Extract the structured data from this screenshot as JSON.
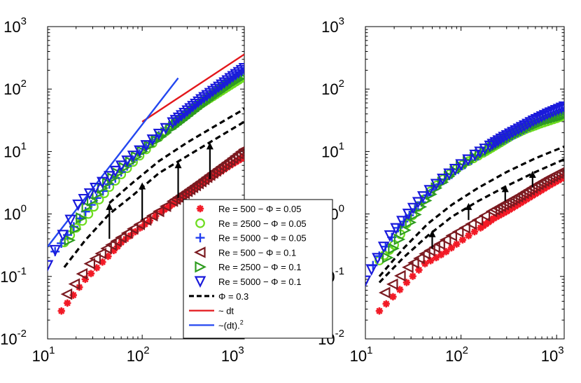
{
  "chart_data": [
    {
      "type": "scatter",
      "panel": "left",
      "x_scale": "log",
      "y_scale": "log",
      "xlim": [
        10,
        1200
      ],
      "ylim": [
        0.01,
        1000
      ],
      "x_ticks": [
        {
          "label": "10",
          "exp": "1"
        },
        {
          "label": "10",
          "exp": "2"
        },
        {
          "label": "10",
          "exp": "3"
        }
      ],
      "x_tick_values": [
        10,
        100,
        1000
      ],
      "y_ticks": [
        {
          "label": "10",
          "exp": "-2"
        },
        {
          "label": "10",
          "exp": "-1"
        },
        {
          "label": "10",
          "exp": "0"
        },
        {
          "label": "10",
          "exp": "1"
        },
        {
          "label": "10",
          "exp": "2"
        },
        {
          "label": "10",
          "exp": "3"
        }
      ],
      "y_tick_values": [
        0.01,
        0.1,
        1,
        10,
        100,
        1000
      ],
      "series": [
        {
          "name": "Re = 500 − Φ = 0.05",
          "marker": "asterisk",
          "color": "#f21a26",
          "x": [
            14,
            25,
            38,
            50,
            60,
            75,
            95,
            120,
            160,
            220,
            300,
            420,
            600,
            850,
            1200
          ],
          "y": [
            0.028,
            0.09,
            0.17,
            0.26,
            0.35,
            0.45,
            0.6,
            0.78,
            1.1,
            1.5,
            2.1,
            3.0,
            4.3,
            6.0,
            8.2
          ]
        },
        {
          "name": "Re = 2500 − Φ = 0.05",
          "marker": "circle",
          "color": "#6ddc1e",
          "x": [
            15,
            20,
            27,
            35,
            45,
            60,
            80,
            110,
            150,
            210,
            300,
            420,
            600,
            850,
            1200
          ],
          "y": [
            0.35,
            0.6,
            1.0,
            1.7,
            2.7,
            4.3,
            6.8,
            10.8,
            17,
            26,
            40,
            58,
            82,
            115,
            160
          ]
        },
        {
          "name": "Re = 5000 − Φ = 0.05",
          "marker": "plus",
          "color": "#1f3cf0",
          "x": [
            12,
            22,
            33,
            45,
            60,
            80,
            110,
            150,
            210,
            300,
            420,
            600,
            850,
            1200
          ],
          "y": [
            0.25,
            0.85,
            1.8,
            3.0,
            4.7,
            7.3,
            11.5,
            18,
            28,
            43,
            65,
            95,
            140,
            200
          ]
        },
        {
          "name": "Re = 500 − Φ = 0.1",
          "marker": "triangle-left",
          "color": "#7b1a20",
          "x": [
            16,
            28,
            42,
            60,
            80,
            110,
            150,
            210,
            300,
            420,
            600,
            850,
            1200
          ],
          "y": [
            0.052,
            0.16,
            0.28,
            0.42,
            0.58,
            0.8,
            1.1,
            1.6,
            2.3,
            3.3,
            4.9,
            7.2,
            10.8
          ]
        },
        {
          "name": "Re = 2500 − Φ = 0.1",
          "marker": "triangle-right",
          "color": "#2e9c1f",
          "x": [
            17,
            26,
            38,
            55,
            75,
            100,
            140,
            200,
            280,
            400,
            570,
            800,
            1200
          ],
          "y": [
            0.38,
            1.3,
            2.6,
            4.5,
            6.8,
            10,
            15,
            23,
            34,
            52,
            78,
            112,
            165
          ]
        },
        {
          "name": "Re = 5000 − Φ = 0.1",
          "marker": "triangle-down",
          "color": "#1a1adb",
          "x": [
            10,
            21,
            32,
            45,
            60,
            80,
            110,
            150,
            210,
            300,
            420,
            600,
            850,
            1200
          ],
          "y": [
            0.15,
            1.4,
            2.6,
            4.0,
            5.9,
            8.5,
            12.5,
            19,
            29,
            45,
            68,
            100,
            148,
            215
          ]
        }
      ],
      "dashed_curves": [
        {
          "name": "Φ = 0.3 (low)",
          "x": [
            15,
            25,
            45,
            80,
            150,
            300,
            600,
            1200
          ],
          "y": [
            0.14,
            0.38,
            1.0,
            2.0,
            4.5,
            8.5,
            16,
            30
          ]
        },
        {
          "name": "Φ = 0.3 (high)",
          "x": [
            45,
            80,
            150,
            300,
            600,
            1200
          ],
          "y": [
            1.5,
            3.2,
            7.0,
            14,
            26,
            48
          ]
        }
      ],
      "arrows": [
        {
          "x": 45,
          "y_from": 0.4,
          "y_to": 1.5
        },
        {
          "x": 100,
          "y_from": 0.8,
          "y_to": 3.2
        },
        {
          "x": 240,
          "y_from": 1.8,
          "y_to": 7.0
        },
        {
          "x": 520,
          "y_from": 3.6,
          "y_to": 14
        }
      ],
      "reference_lines": [
        {
          "name": "~ dt",
          "color": "#e3171b",
          "x": [
            100,
            1200
          ],
          "y": [
            30,
            360
          ]
        },
        {
          "name": "~(dt)^2",
          "color": "#2347f0",
          "x": [
            10,
            240
          ],
          "y": [
            0.3,
            150
          ]
        }
      ]
    },
    {
      "type": "scatter",
      "panel": "right",
      "x_scale": "log",
      "y_scale": "log",
      "xlim": [
        10,
        1200
      ],
      "ylim": [
        0.01,
        1000
      ],
      "x_ticks": [
        {
          "label": "10",
          "exp": "1"
        },
        {
          "label": "10",
          "exp": "2"
        },
        {
          "label": "10",
          "exp": "3"
        }
      ],
      "x_tick_values": [
        10,
        100,
        1000
      ],
      "y_ticks": [
        {
          "label": "10",
          "exp": "-2"
        },
        {
          "label": "10",
          "exp": "-1"
        },
        {
          "label": "10",
          "exp": "0"
        },
        {
          "label": "10",
          "exp": "1"
        },
        {
          "label": "10",
          "exp": "2"
        },
        {
          "label": "10",
          "exp": "3"
        }
      ],
      "y_tick_values": [
        0.01,
        0.1,
        1,
        10,
        100,
        1000
      ],
      "series": [
        {
          "name": "Re = 500 − Φ = 0.05",
          "marker": "asterisk",
          "color": "#f21a26",
          "x": [
            14,
            27,
            42,
            55,
            70,
            90,
            120,
            160,
            220,
            300,
            420,
            600,
            850,
            1200
          ],
          "y": [
            0.028,
            0.08,
            0.16,
            0.2,
            0.25,
            0.33,
            0.45,
            0.6,
            0.85,
            1.1,
            1.5,
            2.1,
            2.9,
            3.9
          ]
        },
        {
          "name": "Re = 2500 − Φ = 0.05",
          "marker": "circle",
          "color": "#6ddc1e",
          "x": [
            14,
            20,
            27,
            36,
            48,
            65,
            90,
            120,
            170,
            240,
            340,
            480,
            680,
            1000,
            1200
          ],
          "y": [
            0.18,
            0.32,
            0.7,
            1.3,
            2.3,
            3.6,
            5.3,
            7.0,
            9.5,
            13,
            18,
            23,
            28,
            34,
            38
          ]
        },
        {
          "name": "Re = 5000 − Φ = 0.05",
          "marker": "plus",
          "color": "#1f3cf0",
          "x": [
            12,
            22,
            33,
            45,
            60,
            80,
            110,
            150,
            210,
            300,
            420,
            600,
            850,
            1200
          ],
          "y": [
            0.15,
            0.6,
            1.2,
            2.0,
            3.0,
            4.3,
            6.2,
            8.5,
            12,
            16,
            21,
            28,
            36,
            46
          ]
        },
        {
          "name": "Re = 500 − Φ = 0.1",
          "marker": "triangle-left",
          "color": "#7b1a20",
          "x": [
            16,
            28,
            42,
            60,
            80,
            110,
            150,
            210,
            300,
            420,
            600,
            850,
            1200
          ],
          "y": [
            0.055,
            0.14,
            0.23,
            0.33,
            0.45,
            0.6,
            0.8,
            1.1,
            1.5,
            2.0,
            2.8,
            3.8,
            5.0
          ]
        },
        {
          "name": "Re = 2500 − Φ = 0.1",
          "marker": "triangle-right",
          "color": "#2e9c1f",
          "x": [
            17,
            26,
            38,
            55,
            75,
            100,
            140,
            200,
            280,
            400,
            570,
            800,
            1200
          ],
          "y": [
            0.2,
            0.55,
            1.3,
            2.6,
            4.0,
            5.8,
            8.0,
            11,
            15,
            20,
            26,
            32,
            38
          ]
        },
        {
          "name": "Re = 5000 − Φ = 0.1",
          "marker": "triangle-down",
          "color": "#1a1adb",
          "x": [
            10,
            18,
            28,
            40,
            55,
            75,
            100,
            140,
            200,
            280,
            400,
            570,
            800,
            1200
          ],
          "y": [
            0.085,
            0.45,
            1.0,
            1.9,
            3.0,
            4.4,
            6.2,
            8.8,
            12.3,
            17,
            23,
            31,
            40,
            52
          ]
        }
      ],
      "dashed_curves": [
        {
          "name": "Φ = 0.3 (low)",
          "x": [
            14,
            25,
            45,
            80,
            150,
            300,
            600,
            1200
          ],
          "y": [
            0.08,
            0.2,
            0.45,
            0.9,
            1.6,
            2.8,
            4.7,
            7.5
          ]
        },
        {
          "name": "Φ = 0.3 (high)",
          "x": [
            14,
            25,
            45,
            80,
            150,
            300,
            600,
            1200
          ],
          "y": [
            0.1,
            0.28,
            0.7,
            1.4,
            2.6,
            4.7,
            7.8,
            12
          ]
        }
      ],
      "arrows": [
        {
          "x": 50,
          "y_from": 0.28,
          "y_to": 0.55
        },
        {
          "x": 120,
          "y_from": 0.8,
          "y_to": 1.5
        },
        {
          "x": 290,
          "y_from": 1.6,
          "y_to": 2.9
        },
        {
          "x": 560,
          "y_from": 2.7,
          "y_to": 4.9
        }
      ],
      "reference_lines": []
    }
  ],
  "legend": {
    "entries": [
      {
        "label": "Re = 500 − Φ = 0.05",
        "kind": "marker",
        "marker": "asterisk",
        "color": "#f21a26"
      },
      {
        "label": "Re = 2500 − Φ = 0.05",
        "kind": "marker",
        "marker": "circle",
        "color": "#6ddc1e"
      },
      {
        "label": "Re = 5000 − Φ = 0.05",
        "kind": "marker",
        "marker": "plus",
        "color": "#1f3cf0"
      },
      {
        "label": "Re = 500 − Φ = 0.1",
        "kind": "marker",
        "marker": "triangle-left",
        "color": "#7b1a20"
      },
      {
        "label": "Re = 2500 − Φ = 0.1",
        "kind": "marker",
        "marker": "triangle-right",
        "color": "#2e9c1f"
      },
      {
        "label": "Re = 5000 − Φ = 0.1",
        "kind": "marker",
        "marker": "triangle-down",
        "color": "#1a1adb"
      },
      {
        "label": "Φ = 0.3",
        "kind": "dashed",
        "color": "#000000"
      },
      {
        "label": "~ dt",
        "kind": "line",
        "color": "#e3171b"
      },
      {
        "label": "~(dt).",
        "sup": "2",
        "kind": "line",
        "color": "#2347f0"
      }
    ]
  }
}
